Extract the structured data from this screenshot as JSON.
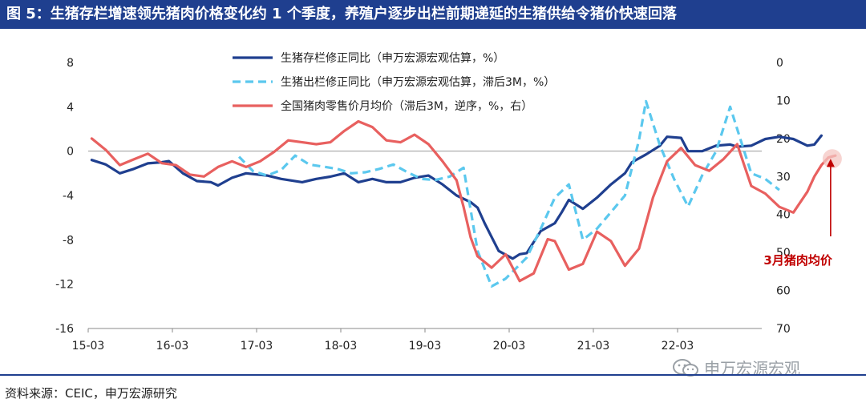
{
  "title": "图 5：生猪存栏增速领先猪肉价格变化约 1 个季度，养殖户逐步出栏前期递延的生猪供给令猪价快速回落",
  "source": "资料来源：CEIC，申万宏源研究",
  "watermark": "申万宏源宏观",
  "chart_data": {
    "type": "line",
    "x_ticks": [
      "15-03",
      "16-03",
      "17-03",
      "18-03",
      "19-03",
      "20-03",
      "21-03",
      "22-03"
    ],
    "y_left": {
      "min": -16,
      "max": 8,
      "ticks": [
        8,
        4,
        0,
        -4,
        -8,
        -12,
        -16
      ]
    },
    "y_right": {
      "min": 0,
      "max": 70,
      "reversed": true,
      "ticks": [
        0,
        10,
        20,
        30,
        40,
        50,
        60,
        70
      ]
    },
    "series": [
      {
        "name": "生猪存栏修正同比（申万宏源宏观估算，%）",
        "axis": "left",
        "color": "#1f3f8f",
        "style": "solid",
        "points": [
          [
            "2015-03",
            -0.8
          ],
          [
            "2015-05",
            -1.2
          ],
          [
            "2015-07",
            -2.0
          ],
          [
            "2015-09",
            -1.6
          ],
          [
            "2015-11",
            -1.1
          ],
          [
            "2016-01",
            -1.0
          ],
          [
            "2016-02",
            -0.9
          ],
          [
            "2016-04",
            -2.0
          ],
          [
            "2016-06",
            -2.7
          ],
          [
            "2016-08",
            -2.8
          ],
          [
            "2016-09",
            -3.1
          ],
          [
            "2016-11",
            -2.4
          ],
          [
            "2017-01",
            -2.0
          ],
          [
            "2017-04",
            -2.2
          ],
          [
            "2017-06",
            -2.5
          ],
          [
            "2017-09",
            -2.8
          ],
          [
            "2017-11",
            -2.5
          ],
          [
            "2018-01",
            -2.3
          ],
          [
            "2018-03",
            -2.0
          ],
          [
            "2018-05",
            -2.8
          ],
          [
            "2018-07",
            -2.5
          ],
          [
            "2018-09",
            -2.8
          ],
          [
            "2018-11",
            -2.8
          ],
          [
            "2019-01",
            -2.4
          ],
          [
            "2019-03",
            -2.2
          ],
          [
            "2019-05",
            -3.0
          ],
          [
            "2019-07",
            -4.0
          ],
          [
            "2019-09",
            -4.6
          ],
          [
            "2019-10",
            -5.1
          ],
          [
            "2019-11",
            -6.5
          ],
          [
            "2020-01",
            -9.0
          ],
          [
            "2020-03",
            -9.7
          ],
          [
            "2020-04",
            -9.3
          ],
          [
            "2020-05",
            -9.2
          ],
          [
            "2020-07",
            -7.2
          ],
          [
            "2020-09",
            -6.5
          ],
          [
            "2020-10",
            -5.5
          ],
          [
            "2020-11",
            -4.4
          ],
          [
            "2021-01",
            -5.2
          ],
          [
            "2021-03",
            -4.2
          ],
          [
            "2021-05",
            -3.0
          ],
          [
            "2021-07",
            -2.0
          ],
          [
            "2021-08",
            -1.0
          ],
          [
            "2021-10",
            -0.3
          ],
          [
            "2021-12",
            0.5
          ],
          [
            "2022-01",
            1.3
          ],
          [
            "2022-03",
            1.2
          ],
          [
            "2022-04",
            0.0
          ],
          [
            "2022-06",
            0.0
          ],
          [
            "2022-08",
            0.5
          ],
          [
            "2022-10",
            0.6
          ],
          [
            "2022-11",
            0.4
          ],
          [
            "2023-01",
            0.5
          ],
          [
            "2023-03",
            1.1
          ],
          [
            "2023-05",
            1.3
          ],
          [
            "2023-07",
            1.1
          ],
          [
            "2023-09",
            0.5
          ],
          [
            "2023-10",
            0.6
          ],
          [
            "2023-11",
            1.4
          ]
        ]
      },
      {
        "name": "生猪出栏修正同比（申万宏源宏观估算，滞后3M，%）",
        "axis": "left",
        "color": "#5bc8ee",
        "style": "dashed",
        "points": [
          [
            "2016-12",
            -0.5
          ],
          [
            "2017-02",
            -1.8
          ],
          [
            "2017-04",
            -2.2
          ],
          [
            "2017-06",
            -1.7
          ],
          [
            "2017-08",
            -0.4
          ],
          [
            "2017-10",
            -1.2
          ],
          [
            "2017-12",
            -1.4
          ],
          [
            "2018-02",
            -1.6
          ],
          [
            "2018-04",
            -2.0
          ],
          [
            "2018-06",
            -1.9
          ],
          [
            "2018-08",
            -1.6
          ],
          [
            "2018-10",
            -1.2
          ],
          [
            "2018-12",
            -1.9
          ],
          [
            "2019-02",
            -2.5
          ],
          [
            "2019-04",
            -2.6
          ],
          [
            "2019-06",
            -2.3
          ],
          [
            "2019-08",
            -1.5
          ],
          [
            "2019-10",
            -9.0
          ],
          [
            "2019-12",
            -12.2
          ],
          [
            "2020-02",
            -11.5
          ],
          [
            "2020-05",
            -9.6
          ],
          [
            "2020-07",
            -7.0
          ],
          [
            "2020-09",
            -4.2
          ],
          [
            "2020-11",
            -3.0
          ],
          [
            "2021-01",
            -8.0
          ],
          [
            "2021-03",
            -7.0
          ],
          [
            "2021-05",
            -5.5
          ],
          [
            "2021-07",
            -4.0
          ],
          [
            "2021-09",
            1.0
          ],
          [
            "2021-10",
            4.5
          ],
          [
            "2021-12",
            0.5
          ],
          [
            "2022-02",
            -2.5
          ],
          [
            "2022-04",
            -5.0
          ],
          [
            "2022-06",
            -2.2
          ],
          [
            "2022-08",
            0.0
          ],
          [
            "2022-10",
            4.0
          ],
          [
            "2022-12",
            0.0
          ],
          [
            "2023-01",
            -2.0
          ],
          [
            "2023-03",
            -2.5
          ],
          [
            "2023-05",
            -3.5
          ]
        ]
      },
      {
        "name": "全国猪肉零售价月均价（滞后3M，逆序，%，右）",
        "axis": "right",
        "color": "#e8605f",
        "style": "solid",
        "points": [
          [
            "2015-03",
            20.0
          ],
          [
            "2015-05",
            23.0
          ],
          [
            "2015-07",
            27.0
          ],
          [
            "2015-09",
            25.5
          ],
          [
            "2015-11",
            24.0
          ],
          [
            "2016-01",
            26.5
          ],
          [
            "2016-03",
            27.0
          ],
          [
            "2016-05",
            29.5
          ],
          [
            "2016-07",
            30.0
          ],
          [
            "2016-09",
            27.5
          ],
          [
            "2016-11",
            26.0
          ],
          [
            "2017-01",
            27.5
          ],
          [
            "2017-03",
            26.0
          ],
          [
            "2017-05",
            23.5
          ],
          [
            "2017-07",
            20.5
          ],
          [
            "2017-09",
            21.0
          ],
          [
            "2017-11",
            21.5
          ],
          [
            "2018-01",
            21.0
          ],
          [
            "2018-03",
            18.0
          ],
          [
            "2018-05",
            15.5
          ],
          [
            "2018-07",
            17.0
          ],
          [
            "2018-09",
            20.5
          ],
          [
            "2018-11",
            21.0
          ],
          [
            "2019-01",
            19.0
          ],
          [
            "2019-03",
            21.5
          ],
          [
            "2019-05",
            26.0
          ],
          [
            "2019-07",
            31.0
          ],
          [
            "2019-08",
            38.0
          ],
          [
            "2019-09",
            46.0
          ],
          [
            "2019-10",
            51.0
          ],
          [
            "2019-12",
            54.0
          ],
          [
            "2020-02",
            50.5
          ],
          [
            "2020-04",
            57.5
          ],
          [
            "2020-06",
            55.5
          ],
          [
            "2020-08",
            46.5
          ],
          [
            "2020-09",
            47.0
          ],
          [
            "2020-11",
            54.5
          ],
          [
            "2021-01",
            53.0
          ],
          [
            "2021-03",
            44.5
          ],
          [
            "2021-05",
            47.0
          ],
          [
            "2021-07",
            53.5
          ],
          [
            "2021-09",
            49.0
          ],
          [
            "2021-11",
            35.5
          ],
          [
            "2022-01",
            26.0
          ],
          [
            "2022-03",
            22.5
          ],
          [
            "2022-05",
            27.0
          ],
          [
            "2022-07",
            28.5
          ],
          [
            "2022-09",
            25.5
          ],
          [
            "2022-11",
            21.5
          ],
          [
            "2022-12",
            27.0
          ],
          [
            "2023-01",
            32.5
          ],
          [
            "2023-03",
            34.5
          ],
          [
            "2023-05",
            38.0
          ],
          [
            "2023-07",
            39.5
          ],
          [
            "2023-09",
            34.0
          ],
          [
            "2023-10",
            30.0
          ],
          [
            "2023-11",
            27.0
          ],
          [
            "2023-12",
            25.0
          ],
          [
            "2024-01",
            24.5
          ]
        ]
      }
    ],
    "annotation": {
      "text": "3月猪肉均价",
      "target": [
        "2024-01",
        24.5
      ],
      "color": "#c00000"
    }
  }
}
